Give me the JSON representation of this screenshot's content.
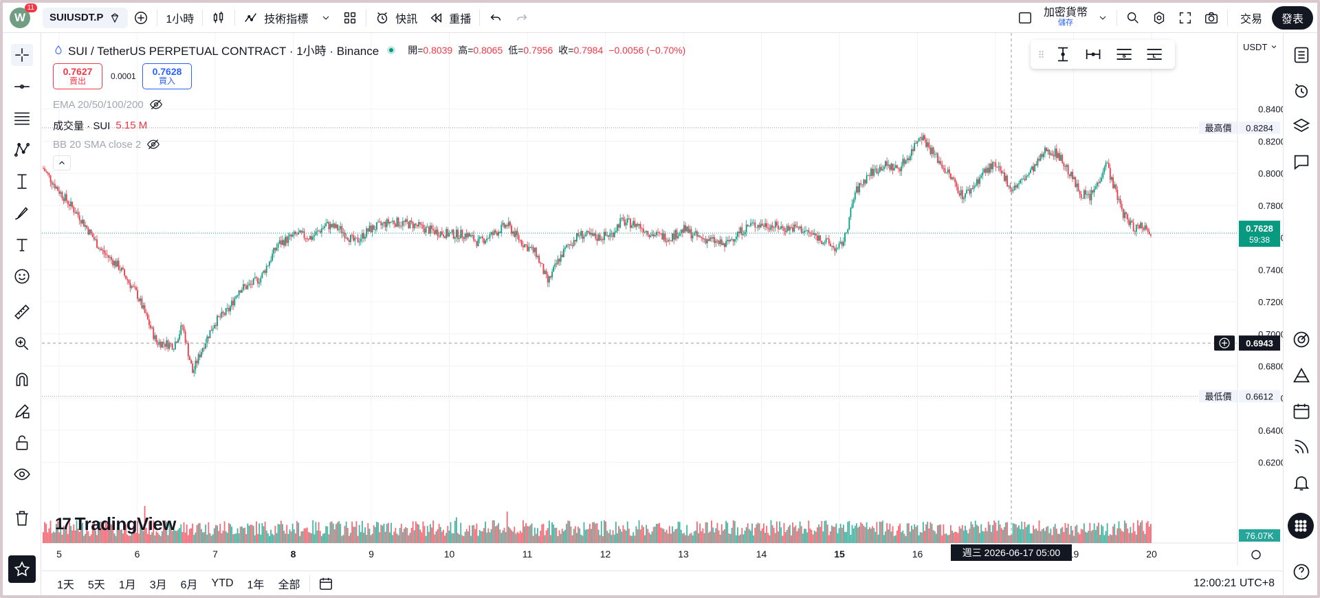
{
  "topbar": {
    "avatar_letter": "W",
    "notifications": "11",
    "symbol": "SUIUSDT.P",
    "interval": "1小時",
    "indicators_label": "技術指標",
    "quick_label": "快訊",
    "replay_label": "重播",
    "crypto_label": "加密貨幣",
    "save_label": "儲存",
    "trade_label": "交易",
    "publish_label": "發表"
  },
  "legend": {
    "title": "SUI / TetherUS PERPETUAL CONTRACT · 1小時 · Binance",
    "open_label": "開=",
    "open": "0.8039",
    "high_label": "高=",
    "high": "0.8065",
    "low_label": "低=",
    "low": "0.7956",
    "close_label": "收=",
    "close": "0.7984",
    "change": "−0.0056 (−0.70%)",
    "sell_price": "0.7627",
    "sell_label": "賣出",
    "spread": "0.0001",
    "buy_price": "0.7628",
    "buy_label": "買入",
    "ema": "EMA 20/50/100/200",
    "volume_label": "成交量 · SUI",
    "volume_value": "5.15 M",
    "bb": "BB 20 SMA close 2",
    "currency": "USDT"
  },
  "chart_data": {
    "type": "candlestick",
    "y_ticks": [
      "0.8400",
      "0.8200",
      "0.8000",
      "0.7800",
      "0.7600",
      "0.7400",
      "0.7200",
      "0.7000",
      "0.6800",
      "0.6600",
      "0.6400",
      "0.6200"
    ],
    "ylim": [
      0.6143,
      0.8463
    ],
    "x_ticks": [
      {
        "label": "5",
        "bold": false
      },
      {
        "label": "6",
        "bold": false
      },
      {
        "label": "7",
        "bold": false
      },
      {
        "label": "8",
        "bold": true
      },
      {
        "label": "9",
        "bold": false
      },
      {
        "label": "10",
        "bold": false
      },
      {
        "label": "11",
        "bold": false
      },
      {
        "label": "12",
        "bold": false
      },
      {
        "label": "13",
        "bold": false
      },
      {
        "label": "14",
        "bold": false
      },
      {
        "label": "15",
        "bold": true
      },
      {
        "label": "16",
        "bold": false
      },
      {
        "label": "8",
        "bold": false
      },
      {
        "label": "19",
        "bold": false
      },
      {
        "label": "20",
        "bold": false
      }
    ],
    "path_anchors": [
      [
        0,
        0.803
      ],
      [
        10,
        0.79
      ],
      [
        25,
        0.773
      ],
      [
        40,
        0.752
      ],
      [
        52,
        0.742
      ],
      [
        65,
        0.724
      ],
      [
        78,
        0.695
      ],
      [
        90,
        0.693
      ],
      [
        96,
        0.705
      ],
      [
        103,
        0.676
      ],
      [
        110,
        0.692
      ],
      [
        118,
        0.707
      ],
      [
        128,
        0.715
      ],
      [
        135,
        0.728
      ],
      [
        142,
        0.73
      ],
      [
        150,
        0.735
      ],
      [
        162,
        0.756
      ],
      [
        175,
        0.762
      ],
      [
        185,
        0.76
      ],
      [
        195,
        0.768
      ],
      [
        205,
        0.765
      ],
      [
        215,
        0.757
      ],
      [
        225,
        0.765
      ],
      [
        240,
        0.77
      ],
      [
        255,
        0.768
      ],
      [
        265,
        0.765
      ],
      [
        280,
        0.762
      ],
      [
        292,
        0.762
      ],
      [
        300,
        0.757
      ],
      [
        310,
        0.762
      ],
      [
        320,
        0.768
      ],
      [
        330,
        0.757
      ],
      [
        340,
        0.75
      ],
      [
        348,
        0.732
      ],
      [
        356,
        0.747
      ],
      [
        362,
        0.755
      ],
      [
        370,
        0.762
      ],
      [
        382,
        0.76
      ],
      [
        392,
        0.762
      ],
      [
        398,
        0.77
      ],
      [
        410,
        0.768
      ],
      [
        420,
        0.762
      ],
      [
        432,
        0.76
      ],
      [
        442,
        0.765
      ],
      [
        452,
        0.76
      ],
      [
        462,
        0.758
      ],
      [
        470,
        0.755
      ],
      [
        478,
        0.762
      ],
      [
        488,
        0.768
      ],
      [
        500,
        0.768
      ],
      [
        510,
        0.766
      ],
      [
        520,
        0.766
      ],
      [
        528,
        0.763
      ],
      [
        535,
        0.76
      ],
      [
        542,
        0.756
      ],
      [
        548,
        0.752
      ],
      [
        553,
        0.76
      ],
      [
        560,
        0.788
      ],
      [
        570,
        0.8
      ],
      [
        580,
        0.805
      ],
      [
        590,
        0.803
      ],
      [
        598,
        0.812
      ],
      [
        605,
        0.825
      ],
      [
        612,
        0.815
      ],
      [
        620,
        0.805
      ],
      [
        628,
        0.795
      ],
      [
        634,
        0.786
      ],
      [
        640,
        0.79
      ],
      [
        648,
        0.8
      ],
      [
        655,
        0.805
      ],
      [
        663,
        0.798
      ],
      [
        668,
        0.79
      ],
      [
        675,
        0.795
      ],
      [
        685,
        0.805
      ],
      [
        692,
        0.815
      ],
      [
        700,
        0.812
      ],
      [
        708,
        0.8
      ],
      [
        715,
        0.788
      ],
      [
        722,
        0.785
      ],
      [
        728,
        0.795
      ],
      [
        733,
        0.808
      ],
      [
        738,
        0.793
      ],
      [
        745,
        0.775
      ],
      [
        752,
        0.766
      ],
      [
        758,
        0.768
      ],
      [
        764,
        0.764
      ]
    ],
    "volume_spikes": [
      [
        70,
        0.65
      ],
      [
        108,
        0.35
      ],
      [
        285,
        0.45
      ],
      [
        320,
        0.55
      ],
      [
        755,
        0.4
      ]
    ],
    "current_price": "0.7628",
    "countdown": "59:38",
    "high_price": "0.8284",
    "high_label": "最高價",
    "low_price": "0.6612",
    "low_label": "最低價",
    "crosshair_price": "0.6943",
    "crosshair_time": "週三 2026-06-17   05:00",
    "volume_last": "76.07K",
    "colors": {
      "up": "#089981",
      "down": "#f23645",
      "grid": "#f0f3fa"
    }
  },
  "ranges": [
    "1天",
    "5天",
    "1月",
    "3月",
    "6月",
    "YTD",
    "1年",
    "全部"
  ],
  "clock": "12:00:21 UTC+8",
  "logo_text": "TradingView"
}
